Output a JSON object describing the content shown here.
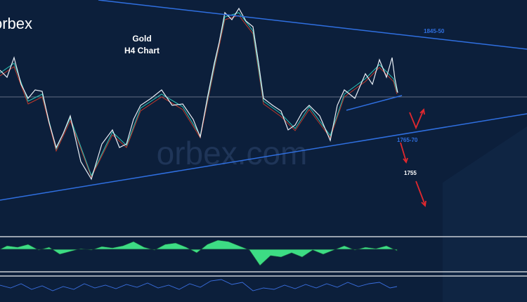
{
  "logo": "orbex",
  "watermark": "orbex.com",
  "title": {
    "instrument": "Gold",
    "timeframe": "H4 Chart"
  },
  "annotations": {
    "resistance": "1845-50",
    "support": "1765-70",
    "target": "1755"
  }
}
